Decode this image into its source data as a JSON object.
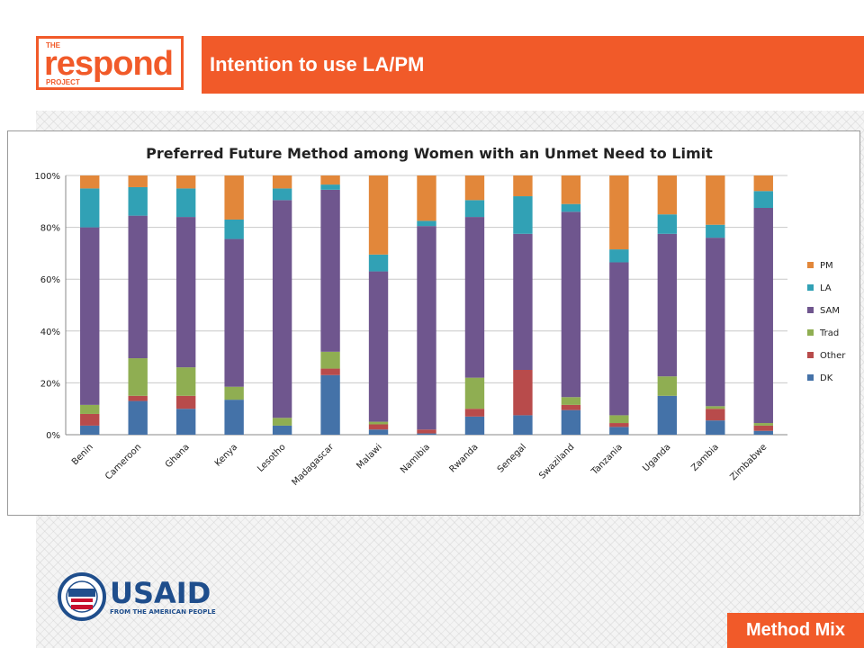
{
  "logo": {
    "top": "THE",
    "word": "respond",
    "bottom": "PROJECT"
  },
  "header": {
    "title": "Intention to use LA/PM"
  },
  "footer": {
    "usaid_word": "USAID",
    "usaid_tagline": "FROM THE AMERICAN PEOPLE",
    "badge": "Method Mix"
  },
  "colors": {
    "accent": "#f15a29",
    "usaid_blue": "#1f4e8c",
    "usaid_red": "#c8102e"
  },
  "chart_data": {
    "type": "bar",
    "stacked": true,
    "title": "Preferred Future Method among Women with an Unmet Need to Limit",
    "xlabel": "",
    "ylabel": "",
    "ylim": [
      0,
      100
    ],
    "yticks": [
      "0%",
      "20%",
      "40%",
      "60%",
      "80%",
      "100%"
    ],
    "grid": true,
    "legend_position": "right",
    "categories": [
      "Benin",
      "Cameroon",
      "Ghana",
      "Kenya",
      "Lesotho",
      "Madagascar",
      "Malawi",
      "Namibia",
      "Rwanda",
      "Senegal",
      "Swaziland",
      "Tanzania",
      "Uganda",
      "Zambia",
      "Zimbabwe"
    ],
    "series": [
      {
        "name": "DK",
        "color": "#4472a8",
        "values": [
          3.5,
          13,
          10,
          13.5,
          3.5,
          23,
          2,
          0.5,
          7,
          7.5,
          9.5,
          3,
          15,
          5.5,
          1.5
        ]
      },
      {
        "name": "Other",
        "color": "#b84b4b",
        "values": [
          4.5,
          2,
          5,
          0,
          0,
          2.5,
          2,
          1.5,
          3,
          17.5,
          2,
          1.5,
          0,
          4.5,
          2
        ]
      },
      {
        "name": "Trad",
        "color": "#8fae52",
        "values": [
          3.5,
          14.5,
          11,
          5,
          3,
          6.5,
          1,
          0,
          12,
          0,
          3,
          3,
          7.5,
          1,
          1
        ]
      },
      {
        "name": "SAM",
        "color": "#6f568e",
        "values": [
          68.5,
          55,
          58,
          57,
          84,
          62.5,
          58,
          78.5,
          62,
          52.5,
          71.5,
          59,
          55,
          65,
          83
        ]
      },
      {
        "name": "LA",
        "color": "#31a1b5",
        "values": [
          15,
          11,
          11,
          7.5,
          4.5,
          2,
          6.5,
          2,
          6.5,
          14.5,
          3,
          5,
          7.5,
          5,
          6.5
        ]
      },
      {
        "name": "PM",
        "color": "#e2873a",
        "values": [
          5,
          4.5,
          5,
          17,
          5,
          3.5,
          30.5,
          17.5,
          9.5,
          8,
          11,
          28.5,
          15,
          19,
          6
        ]
      }
    ]
  }
}
